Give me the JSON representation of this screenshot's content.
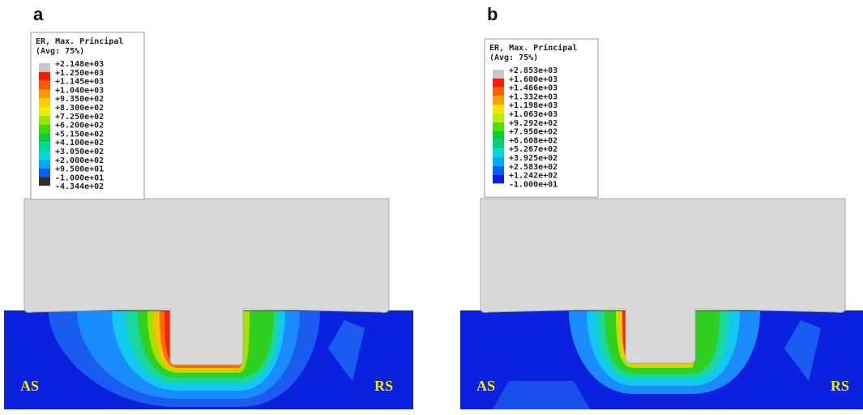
{
  "panels": [
    {
      "label": "a",
      "legend": {
        "title": "ER, Max. Principal",
        "subtitle": "(Avg: 75%)",
        "entries": [
          "+2.148e+03",
          "+1.250e+03",
          "+1.145e+03",
          "+1.040e+03",
          "+9.350e+02",
          "+8.300e+02",
          "+7.250e+02",
          "+6.200e+02",
          "+5.150e+02",
          "+4.100e+02",
          "+3.050e+02",
          "+2.000e+02",
          "+9.500e+01",
          "-1.000e+01",
          "-4.344e+02"
        ]
      },
      "left_label": "AS",
      "right_label": "RS"
    },
    {
      "label": "b",
      "legend": {
        "title": "ER, Max. Principal",
        "subtitle": "(Avg: 75%)",
        "entries": [
          "+2.853e+03",
          "+1.600e+03",
          "+1.466e+03",
          "+1.332e+03",
          "+1.198e+03",
          "+1.063e+03",
          "+9.292e+02",
          "+7.950e+02",
          "+6.608e+02",
          "+5.267e+02",
          "+3.925e+02",
          "+2.583e+02",
          "+1.242e+02",
          "-1.000e+01"
        ]
      },
      "left_label": "AS",
      "right_label": "RS"
    }
  ]
}
